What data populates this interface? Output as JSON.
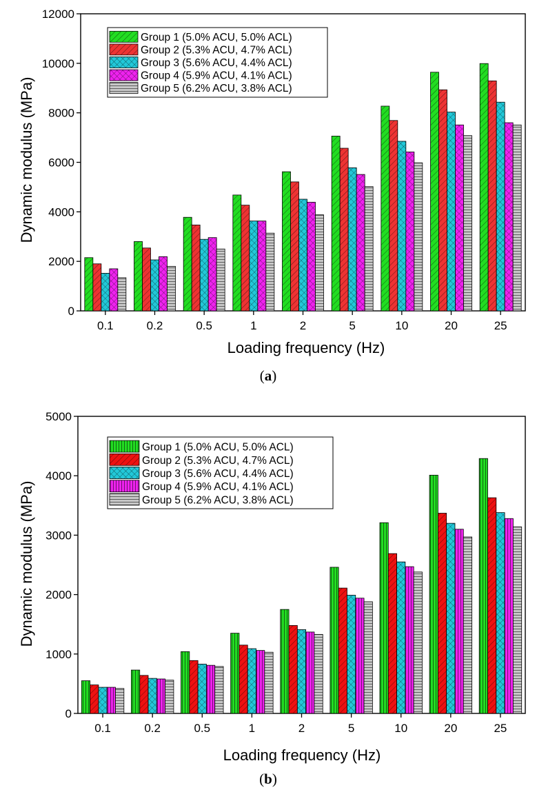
{
  "chart_data": [
    {
      "type": "bar",
      "caption_open": "(",
      "caption_letter": "a",
      "caption_close": ")",
      "xlabel": "Loading frequency (Hz)",
      "ylabel": "Dynamic modulus (MPa)",
      "ylim": [
        0,
        12000
      ],
      "yticks": [
        0,
        2000,
        4000,
        6000,
        8000,
        10000,
        12000
      ],
      "categories": [
        "0.1",
        "0.2",
        "0.5",
        "1",
        "2",
        "5",
        "10",
        "20",
        "25"
      ],
      "legend_position": "top-left",
      "series": [
        {
          "name": "Group 1 (5.0% ACU, 5.0% ACL)",
          "color": "#22dd22",
          "pattern": "diag",
          "values": [
            2150,
            2800,
            3780,
            4680,
            5620,
            7060,
            8270,
            9640,
            9990
          ]
        },
        {
          "name": "Group 2 (5.3% ACU, 4.7% ACL)",
          "color": "#ee3333",
          "pattern": "diag",
          "values": [
            1900,
            2540,
            3470,
            4270,
            5210,
            6570,
            7690,
            8930,
            9290
          ]
        },
        {
          "name": "Group 3 (5.6% ACU, 4.4% ACL)",
          "color": "#22c8d8",
          "pattern": "cross",
          "values": [
            1520,
            2060,
            2890,
            3630,
            4510,
            5780,
            6850,
            8030,
            8430
          ]
        },
        {
          "name": "Group 4 (5.9% ACU, 4.1% ACL)",
          "color": "#ee22ee",
          "pattern": "cross",
          "values": [
            1700,
            2190,
            2960,
            3630,
            4390,
            5510,
            6420,
            7510,
            7600
          ]
        },
        {
          "name": "Group 5 (6.2% ACU, 3.8% ACL)",
          "color": "#c8c8c8",
          "pattern": "hlines",
          "values": [
            1340,
            1800,
            2500,
            3140,
            3880,
            5020,
            5980,
            7080,
            7510
          ]
        }
      ]
    },
    {
      "type": "bar",
      "caption_open": "(",
      "caption_letter": "b",
      "caption_close": ")",
      "xlabel": "Loading frequency (Hz)",
      "ylabel": "Dynamic modulus (MPa)",
      "ylim": [
        0,
        5000
      ],
      "yticks": [
        0,
        1000,
        2000,
        3000,
        4000,
        5000
      ],
      "categories": [
        "0.1",
        "0.2",
        "0.5",
        "1",
        "2",
        "5",
        "10",
        "20",
        "25"
      ],
      "legend_position": "top-left",
      "series": [
        {
          "name": "Group 1 (5.0% ACU, 5.0% ACL)",
          "color": "#22dd22",
          "pattern": "vlines",
          "values": [
            550,
            730,
            1040,
            1350,
            1750,
            2460,
            3210,
            4010,
            4290
          ]
        },
        {
          "name": "Group 2 (5.3% ACU, 4.7% ACL)",
          "color": "#ee1111",
          "pattern": "diag",
          "values": [
            480,
            640,
            890,
            1150,
            1480,
            2110,
            2690,
            3370,
            3630
          ]
        },
        {
          "name": "Group 3 (5.6% ACU, 4.4% ACL)",
          "color": "#22c8d8",
          "pattern": "cross",
          "values": [
            440,
            590,
            830,
            1090,
            1410,
            1990,
            2550,
            3200,
            3380
          ]
        },
        {
          "name": "Group 4 (5.9% ACU, 4.1% ACL)",
          "color": "#ee22ee",
          "pattern": "vlines",
          "values": [
            440,
            580,
            810,
            1060,
            1370,
            1940,
            2470,
            3100,
            3280
          ]
        },
        {
          "name": "Group 5 (6.2% ACU, 3.8% ACL)",
          "color": "#c8c8c8",
          "pattern": "hlines",
          "values": [
            420,
            560,
            790,
            1030,
            1330,
            1880,
            2380,
            2970,
            3140
          ]
        }
      ]
    }
  ]
}
